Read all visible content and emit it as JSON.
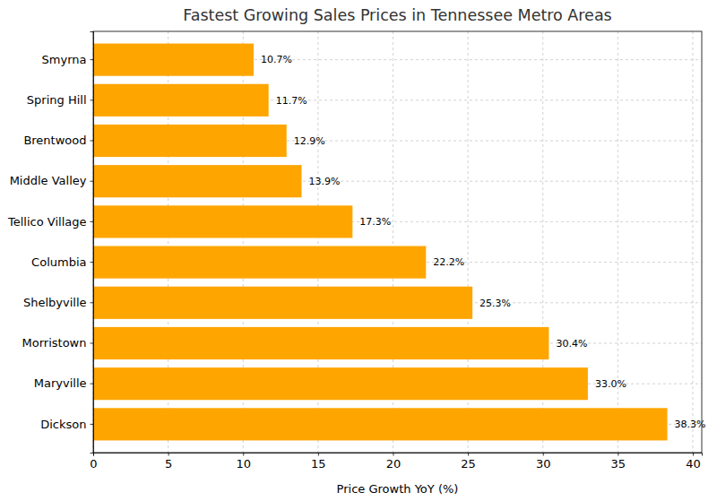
{
  "chart_data": {
    "type": "bar",
    "orientation": "horizontal",
    "title": "Fastest Growing Sales Prices in Tennessee Metro Areas",
    "x_label": "Price Growth YoY (%)",
    "categories": [
      "Dickson",
      "Maryville",
      "Morristown",
      "Shelbyville",
      "Columbia",
      "Tellico Village",
      "Middle Valley",
      "Brentwood",
      "Spring Hill",
      "Smyrna"
    ],
    "values": [
      38.3,
      33.0,
      30.4,
      25.3,
      22.2,
      17.3,
      13.9,
      12.9,
      11.7,
      10.7
    ],
    "value_labels": [
      "38.3%",
      "33.0%",
      "30.4%",
      "25.3%",
      "22.2%",
      "17.3%",
      "13.9%",
      "12.9%",
      "11.7%",
      "10.7%"
    ],
    "color": "#ffa500",
    "xlim": [
      0,
      40.6
    ],
    "xticks": [
      0,
      5,
      10,
      15,
      20,
      25,
      30,
      35,
      40
    ],
    "grid": true,
    "data_labels": true
  }
}
